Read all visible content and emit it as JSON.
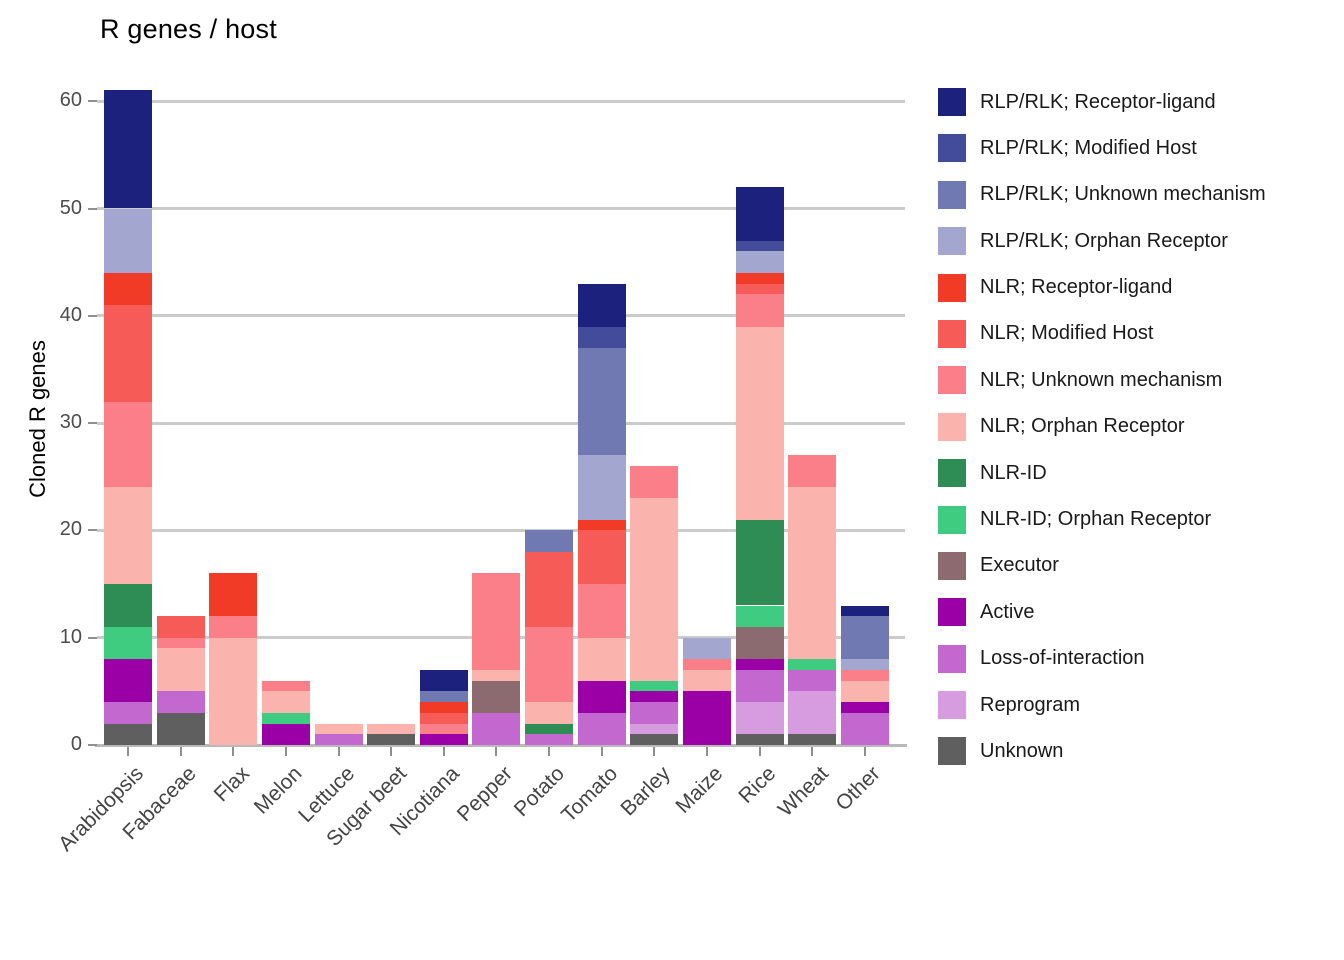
{
  "chart_data": {
    "type": "bar",
    "stacked": true,
    "title": "R genes / host",
    "ylabel": "Cloned R genes",
    "xlabel": "",
    "grid": true,
    "legend_position": "right",
    "ylim": [
      0,
      63.4
    ],
    "yticks": [
      0,
      10,
      20,
      30,
      40,
      50,
      60
    ],
    "categories": [
      "Arabidopsis",
      "Fabaceae",
      "Flax",
      "Melon",
      "Lettuce",
      "Sugar beet",
      "Nicotiana",
      "Pepper",
      "Potato",
      "Tomato",
      "Barley",
      "Maize",
      "Rice",
      "Wheat",
      "Other"
    ],
    "totals": [
      61,
      12,
      16,
      6,
      2,
      2,
      7,
      16,
      20,
      43,
      26,
      10,
      52,
      27,
      13
    ],
    "series": [
      {
        "name": "RLP/RLK; Receptor-ligand",
        "color": "#1b217c",
        "values": [
          11,
          0,
          0,
          0,
          0,
          0,
          2,
          0,
          0,
          4,
          0,
          0,
          5,
          0,
          1
        ]
      },
      {
        "name": "RLP/RLK; Modified Host",
        "color": "#424c9b",
        "values": [
          0,
          0,
          0,
          0,
          0,
          0,
          0,
          0,
          0,
          2,
          0,
          0,
          1,
          0,
          0
        ]
      },
      {
        "name": "RLP/RLK; Unknown mechanism",
        "color": "#7179b3",
        "values": [
          0,
          0,
          0,
          0,
          0,
          0,
          1,
          0,
          2,
          10,
          0,
          0,
          0,
          0,
          4
        ]
      },
      {
        "name": "RLP/RLK; Orphan Receptor",
        "color": "#a3a7cf",
        "values": [
          6,
          0,
          0,
          0,
          0,
          0,
          0,
          0,
          0,
          6,
          0,
          2,
          2,
          0,
          1
        ]
      },
      {
        "name": "NLR; Receptor-ligand",
        "color": "#f23b26",
        "values": [
          3,
          0,
          4,
          0,
          0,
          0,
          1,
          0,
          0,
          1,
          0,
          0,
          1,
          0,
          0
        ]
      },
      {
        "name": "NLR; Modified Host",
        "color": "#f75b57",
        "values": [
          9,
          2,
          0,
          0,
          0,
          0,
          1,
          0,
          7,
          5,
          0,
          0,
          1,
          0,
          0
        ]
      },
      {
        "name": "NLR; Unknown mechanism",
        "color": "#fa7f88",
        "values": [
          8,
          1,
          2,
          1,
          0,
          0,
          1,
          9,
          7,
          5,
          3,
          1,
          3,
          3,
          1
        ]
      },
      {
        "name": "NLR; Orphan Receptor",
        "color": "#fab4ad",
        "values": [
          9,
          4,
          10,
          2,
          1,
          1,
          0,
          1,
          2,
          4,
          17,
          2,
          18,
          16,
          2
        ]
      },
      {
        "name": "NLR-ID",
        "color": "#2e8c55",
        "values": [
          4,
          0,
          0,
          0,
          0,
          0,
          0,
          0,
          1,
          0,
          0,
          0,
          8,
          0,
          0
        ]
      },
      {
        "name": "NLR-ID; Orphan Receptor",
        "color": "#40cc80",
        "values": [
          3,
          0,
          0,
          1,
          0,
          0,
          0,
          0,
          0,
          0,
          1,
          0,
          2,
          1,
          0
        ]
      },
      {
        "name": "Executor",
        "color": "#8b6b70",
        "values": [
          0,
          0,
          0,
          0,
          0,
          0,
          0,
          3,
          0,
          0,
          0,
          0,
          3,
          0,
          0
        ]
      },
      {
        "name": "Active",
        "color": "#9a00a6",
        "values": [
          4,
          0,
          0,
          2,
          0,
          0,
          1,
          0,
          0,
          3,
          1,
          5,
          1,
          0,
          1
        ]
      },
      {
        "name": "Loss-of-interaction",
        "color": "#c368cf",
        "values": [
          2,
          2,
          0,
          0,
          1,
          0,
          0,
          3,
          1,
          3,
          2,
          0,
          3,
          2,
          3
        ]
      },
      {
        "name": "Reprogram",
        "color": "#d79be0",
        "values": [
          0,
          0,
          0,
          0,
          0,
          0,
          0,
          0,
          0,
          0,
          1,
          0,
          3,
          4,
          0
        ]
      },
      {
        "name": "Unknown",
        "color": "#5f5f5f",
        "values": [
          2,
          3,
          0,
          0,
          0,
          1,
          0,
          0,
          0,
          0,
          1,
          0,
          1,
          1,
          0
        ]
      }
    ]
  }
}
